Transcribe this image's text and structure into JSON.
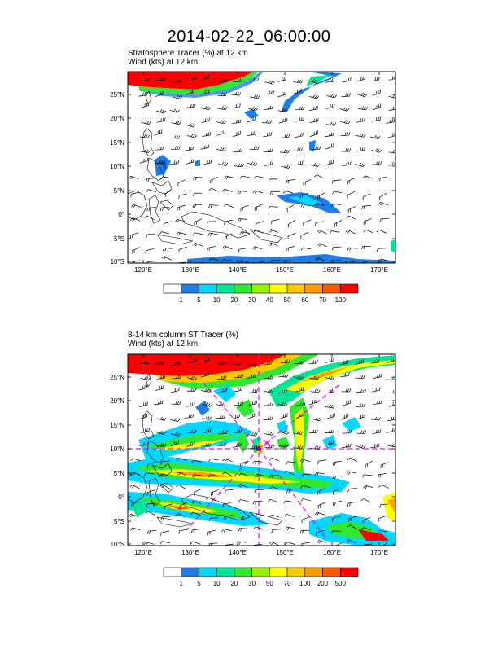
{
  "title": "2014-02-22_06:00:00",
  "colors": {
    "level_colors": [
      "#ffffff",
      "#1e7ee6",
      "#00d7ff",
      "#00e59a",
      "#32e632",
      "#9af000",
      "#ffff00",
      "#ffc800",
      "#ff9b00",
      "#ff5a00",
      "#ff0000"
    ],
    "coastline": "#000000",
    "grid": "#bbbbbb",
    "flight_track": "#ff00ff"
  },
  "lon_labels": [
    "120°E",
    "130°E",
    "140°E",
    "150°E",
    "160°E",
    "170°E"
  ],
  "lat_labels": [
    "25°N",
    "20°N",
    "15°N",
    "10°N",
    "5°N",
    "0°",
    "5°S",
    "10°S"
  ],
  "panels": [
    {
      "title_line1": "Stratosphere Tracer   (%)     at   12 km",
      "title_line2": "Wind    (kts)     at   12 km",
      "colorbar": {
        "labels": [
          "1",
          "5",
          "10",
          "20",
          "30",
          "40",
          "50",
          "60",
          "70",
          "100"
        ]
      }
    },
    {
      "title_line1": "8-14 km column ST Tracer   (%)",
      "title_line2": "Wind    (kts)     at   12 km",
      "colorbar": {
        "labels": [
          "1",
          "5",
          "10",
          "20",
          "30",
          "50",
          "70",
          "100",
          "200",
          "500"
        ]
      }
    }
  ]
}
